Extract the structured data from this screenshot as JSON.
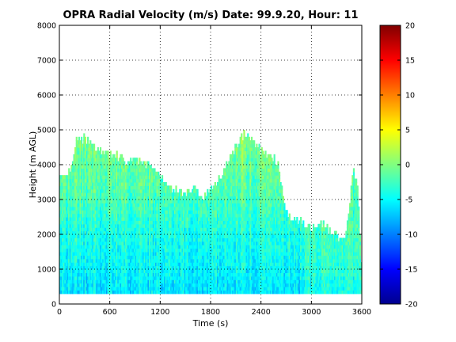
{
  "chart_data": {
    "type": "heatmap",
    "title": "OPRA Radial Velocity (m/s)  Date: 99.9.20, Hour: 11",
    "xlabel": "Time (s)",
    "ylabel": "Height (m AGL)",
    "xlim": [
      0,
      3600
    ],
    "ylim": [
      0,
      8000
    ],
    "xticks": [
      0,
      600,
      1200,
      1800,
      2400,
      3000,
      3600
    ],
    "yticks": [
      0,
      1000,
      2000,
      3000,
      4000,
      5000,
      6000,
      7000,
      8000
    ],
    "grid": true,
    "colormap": "jet",
    "colorbar": {
      "min": -20,
      "max": 20,
      "ticks": [
        -20,
        -15,
        -10,
        -5,
        0,
        5,
        10,
        15,
        20
      ]
    },
    "data_floor_m": 300,
    "echo_top_profile": {
      "description": "approximate top of detected echo (m) versus time (s)",
      "time_s": [
        0,
        100,
        200,
        300,
        400,
        500,
        600,
        700,
        800,
        900,
        1000,
        1100,
        1200,
        1300,
        1400,
        1500,
        1600,
        1700,
        1800,
        1900,
        2000,
        2100,
        2200,
        2300,
        2400,
        2500,
        2600,
        2700,
        2800,
        2900,
        3000,
        3100,
        3200,
        3300,
        3400,
        3500,
        3550,
        3600
      ],
      "top_m": [
        3700,
        3600,
        4600,
        4700,
        4500,
        4300,
        4300,
        4200,
        4000,
        4100,
        4000,
        3900,
        3600,
        3300,
        3200,
        3100,
        3300,
        3000,
        3300,
        3500,
        4000,
        4500,
        4800,
        4700,
        4300,
        4200,
        4000,
        2600,
        2400,
        2300,
        2100,
        2300,
        2100,
        1900,
        1800,
        3800,
        3400,
        900
      ]
    },
    "velocity_profile": {
      "description": "typical radial velocity (m/s) by height band",
      "height_m": [
        300,
        1000,
        2000,
        3000,
        4000,
        5000
      ],
      "velocity_ms": [
        -6,
        -5,
        -4,
        -2,
        -1,
        0
      ]
    }
  }
}
